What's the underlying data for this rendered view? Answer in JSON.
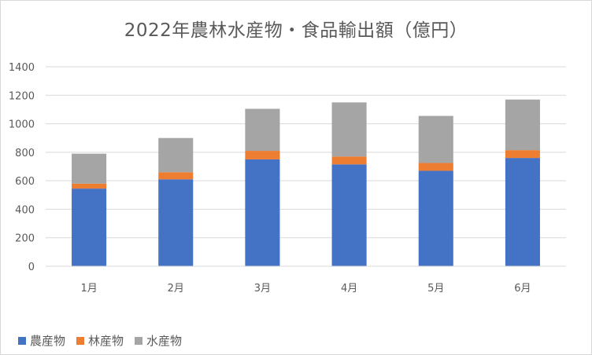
{
  "chart_data": {
    "type": "bar",
    "stacked": true,
    "title": "2022年農林水産物・食品輸出額（億円）",
    "categories": [
      "1月",
      "2月",
      "3月",
      "4月",
      "5月",
      "6月"
    ],
    "series": [
      {
        "name": "農産物",
        "color": "#4472C4",
        "values": [
          545,
          610,
          750,
          715,
          670,
          760
        ]
      },
      {
        "name": "林産物",
        "color": "#ED7D31",
        "values": [
          35,
          50,
          60,
          55,
          55,
          55
        ]
      },
      {
        "name": "水産物",
        "color": "#A5A5A5",
        "values": [
          210,
          240,
          295,
          380,
          330,
          355
        ]
      }
    ],
    "ylim": [
      0,
      1400
    ],
    "yticks": [
      0,
      200,
      400,
      600,
      800,
      1000,
      1200,
      1400
    ],
    "grid": true,
    "legend_position": "bottom-left"
  }
}
